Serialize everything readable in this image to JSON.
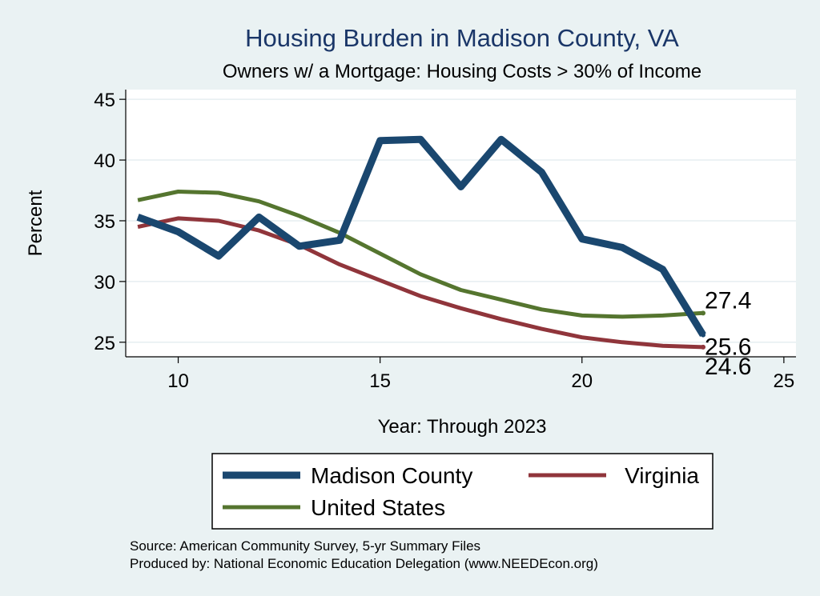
{
  "chart_data": {
    "type": "line",
    "title": "Housing Burden in Madison County, VA",
    "subtitle": "Owners w/ a Mortgage: Housing Costs > 30% of Income",
    "xlabel": "Year: Through 2023",
    "ylabel": "Percent",
    "xlim": [
      8.7,
      25.3
    ],
    "ylim": [
      23.8,
      45.8
    ],
    "xticks": [
      10,
      15,
      20,
      25
    ],
    "yticks": [
      25,
      30,
      35,
      40,
      45
    ],
    "grid": true,
    "legend_position": "bottom",
    "series": [
      {
        "name": "Madison County",
        "color": "#1a476f",
        "x": [
          9,
          10,
          11,
          12,
          13,
          14,
          15,
          16,
          17,
          18,
          19,
          20,
          21,
          22,
          23
        ],
        "y": [
          35.3,
          34.1,
          32.1,
          35.3,
          32.9,
          33.4,
          41.6,
          41.7,
          37.8,
          41.7,
          39.0,
          33.5,
          32.8,
          31.0,
          25.6
        ],
        "end_label": "25.6"
      },
      {
        "name": "Virginia",
        "color": "#90353b",
        "x": [
          9,
          10,
          11,
          12,
          13,
          14,
          15,
          16,
          17,
          18,
          19,
          20,
          21,
          22,
          23
        ],
        "y": [
          34.5,
          35.2,
          35.0,
          34.2,
          33.0,
          31.4,
          30.1,
          28.8,
          27.8,
          26.9,
          26.1,
          25.4,
          25.0,
          24.7,
          24.6
        ],
        "end_label": "24.6"
      },
      {
        "name": "United States",
        "color": "#55752f",
        "x": [
          9,
          10,
          11,
          12,
          13,
          14,
          15,
          16,
          17,
          18,
          19,
          20,
          21,
          22,
          23
        ],
        "y": [
          36.7,
          37.4,
          37.3,
          36.6,
          35.4,
          34.0,
          32.3,
          30.6,
          29.3,
          28.5,
          27.7,
          27.2,
          27.1,
          27.2,
          27.4
        ],
        "end_label": "27.4"
      }
    ]
  },
  "notes": {
    "source": "Source: American Community Survey, 5-yr Summary Files",
    "produced_by": "Produced by: National Economic Education Delegation (www.NEEDEcon.org)"
  }
}
